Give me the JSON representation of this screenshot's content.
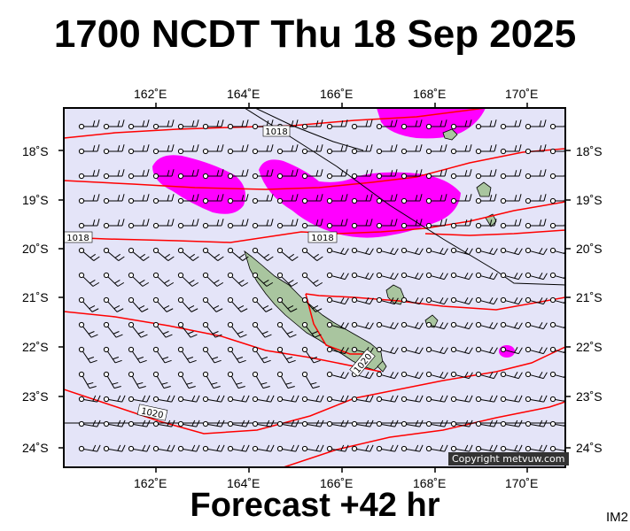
{
  "header": {
    "title": "1700 NCDT Thu 18 Sep 2025"
  },
  "footer": {
    "forecast": "Forecast +42 hr",
    "image_code": "IM2"
  },
  "copyright": "Copyright metvuw.com",
  "axes": {
    "top_lon": [
      "162˚E",
      "164˚E",
      "166˚E",
      "168˚E",
      "170˚E"
    ],
    "bottom_lon": [
      "162˚E",
      "164˚E",
      "166˚E",
      "168˚E",
      "170˚E"
    ],
    "left_lat": [
      "18˚S",
      "19˚S",
      "20˚S",
      "21˚S",
      "22˚S",
      "23˚S",
      "24˚S"
    ],
    "right_lat": [
      "18˚S",
      "19˚S",
      "20˚S",
      "21˚S",
      "22˚S",
      "23˚S",
      "24˚S"
    ]
  },
  "isobar_labels": [
    "1018",
    "1018",
    "1018",
    "1020",
    "1020"
  ],
  "colors": {
    "ocean": "#e4e4f8",
    "isobar": "#ff0000",
    "rain": "#ff00ff",
    "land": "#a9c59f",
    "frame": "#000000"
  }
}
